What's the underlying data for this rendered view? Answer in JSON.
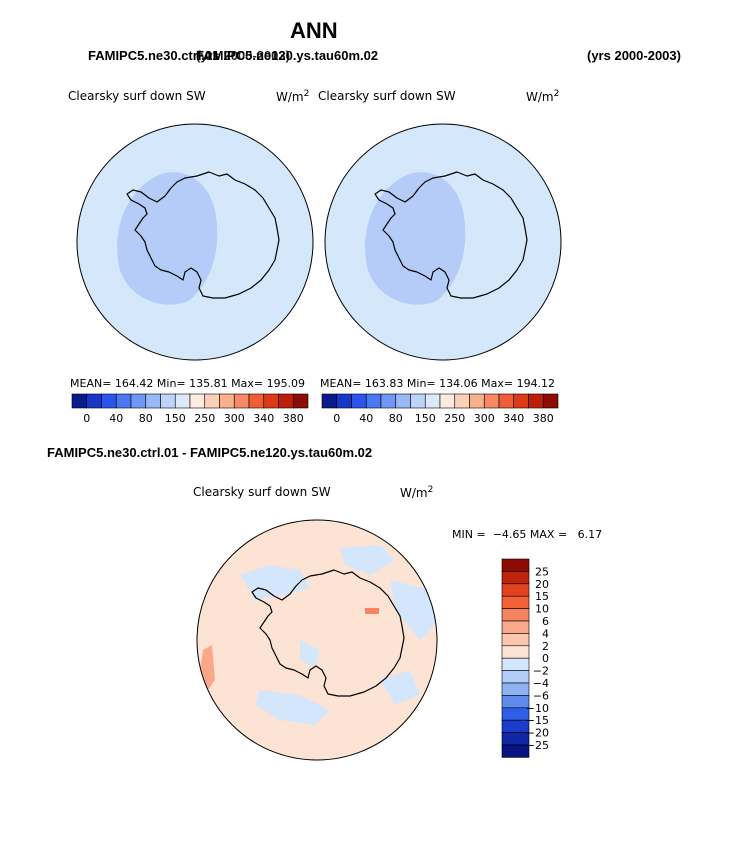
{
  "header": {
    "title": "ANN",
    "case_left_overlap_a": "FAMIPC5.ne30.ctrl.01",
    "case_left_overlap_b": "FAMIPC5.ne120.ys.tau60m.02",
    "case_left_overlap_c": "(yrs 2000-2003)",
    "case_right_years": "(yrs 2000-2003)"
  },
  "panel_left": {
    "variable": "Clearsky surf down SW",
    "units": "W/m",
    "units_exp": "2",
    "stats": "MEAN= 164.42   Min= 135.81   Max= 195.09"
  },
  "panel_right": {
    "variable": "Clearsky surf down SW",
    "units": "W/m",
    "units_exp": "2",
    "stats": "MEAN= 163.83   Min= 134.06   Max= 194.12"
  },
  "top_colorbar": {
    "labels": [
      "0",
      "40",
      "80",
      "150",
      "250",
      "300",
      "340",
      "380"
    ],
    "colors": [
      "#0a1a8c",
      "#1737c8",
      "#2a55e8",
      "#4a78f0",
      "#6e98f4",
      "#98b8f6",
      "#bcd4f9",
      "#dce9fb",
      "#fdebe0",
      "#fbd0b6",
      "#f8b08d",
      "#f58a64",
      "#ee5f38",
      "#dd3a18",
      "#bc1e0a",
      "#8e0b04"
    ]
  },
  "diff": {
    "title": "FAMIPC5.ne30.ctrl.01 - FAMIPC5.ne120.ys.tau60m.02",
    "variable": "Clearsky surf down SW",
    "units": "W/m",
    "units_exp": "2",
    "min_label": "MIN =",
    "min_value": "−4.65",
    "max_label": "MAX =",
    "max_value": "6.17"
  },
  "diff_colorbar": {
    "labels": [
      "25",
      "20",
      "15",
      "10",
      "6",
      "4",
      "2",
      "0",
      "−2",
      "−4",
      "−6",
      "−10",
      "−15",
      "−20",
      "−25"
    ],
    "colors": [
      "#8e0b04",
      "#c0230c",
      "#e2421f",
      "#f26035",
      "#f6845e",
      "#f9a98a",
      "#fbc6ad",
      "#fde3d4",
      "#d4e6fb",
      "#b2cdf7",
      "#8fb2f3",
      "#5d8cef",
      "#2f5ee6",
      "#1b3cc8",
      "#0f26a6",
      "#071580"
    ]
  },
  "map_colors": {
    "ocean_top": "#d4e7fb",
    "inner_top": "#b4ccf7",
    "ocean_diff": "#fde3d4",
    "patch_blue": "#d4e6fb",
    "patch_red": "#f6845e"
  }
}
